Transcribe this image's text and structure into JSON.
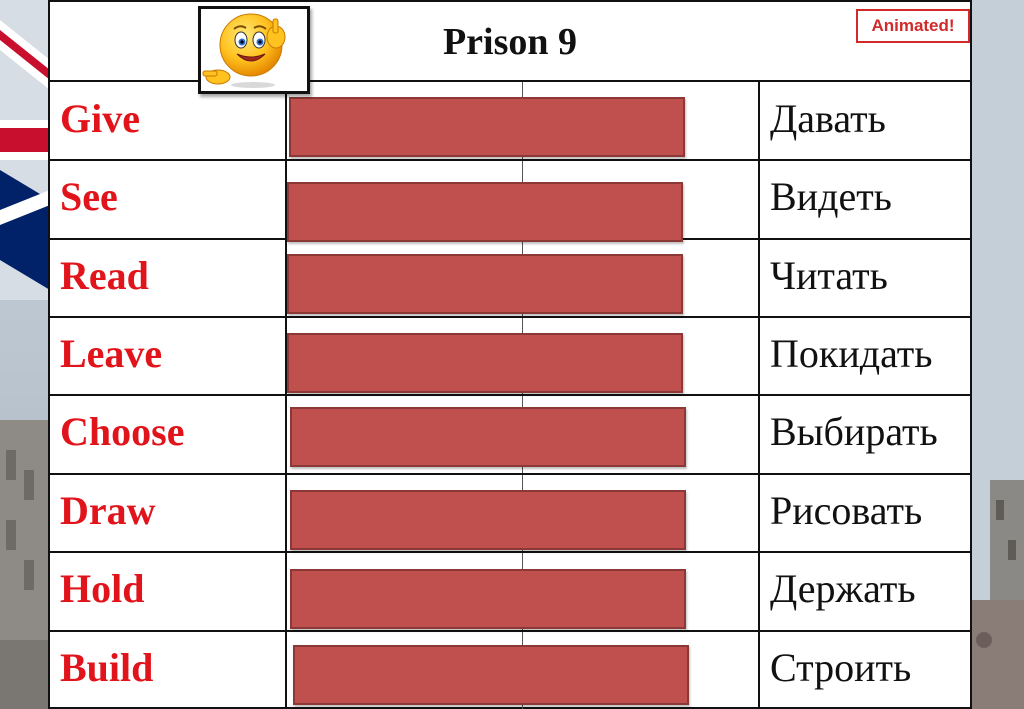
{
  "title": "Prison 9",
  "badge": "Animated!",
  "colors": {
    "english": "#e2141b",
    "cover": "#c0504d",
    "russian": "#111111"
  },
  "emoji_icon": "smiley-pointing-icon",
  "rows": [
    {
      "english": "Give",
      "russian": "Давать"
    },
    {
      "english": "See",
      "russian": "Видеть"
    },
    {
      "english": "Read",
      "russian": "Читать"
    },
    {
      "english": "Leave",
      "russian": "Покидать"
    },
    {
      "english": "Choose",
      "russian": "Выбирать"
    },
    {
      "english": "Draw",
      "russian": "Рисовать"
    },
    {
      "english": "Hold",
      "russian": "Держать"
    },
    {
      "english": "Build",
      "russian": "Строить"
    }
  ]
}
